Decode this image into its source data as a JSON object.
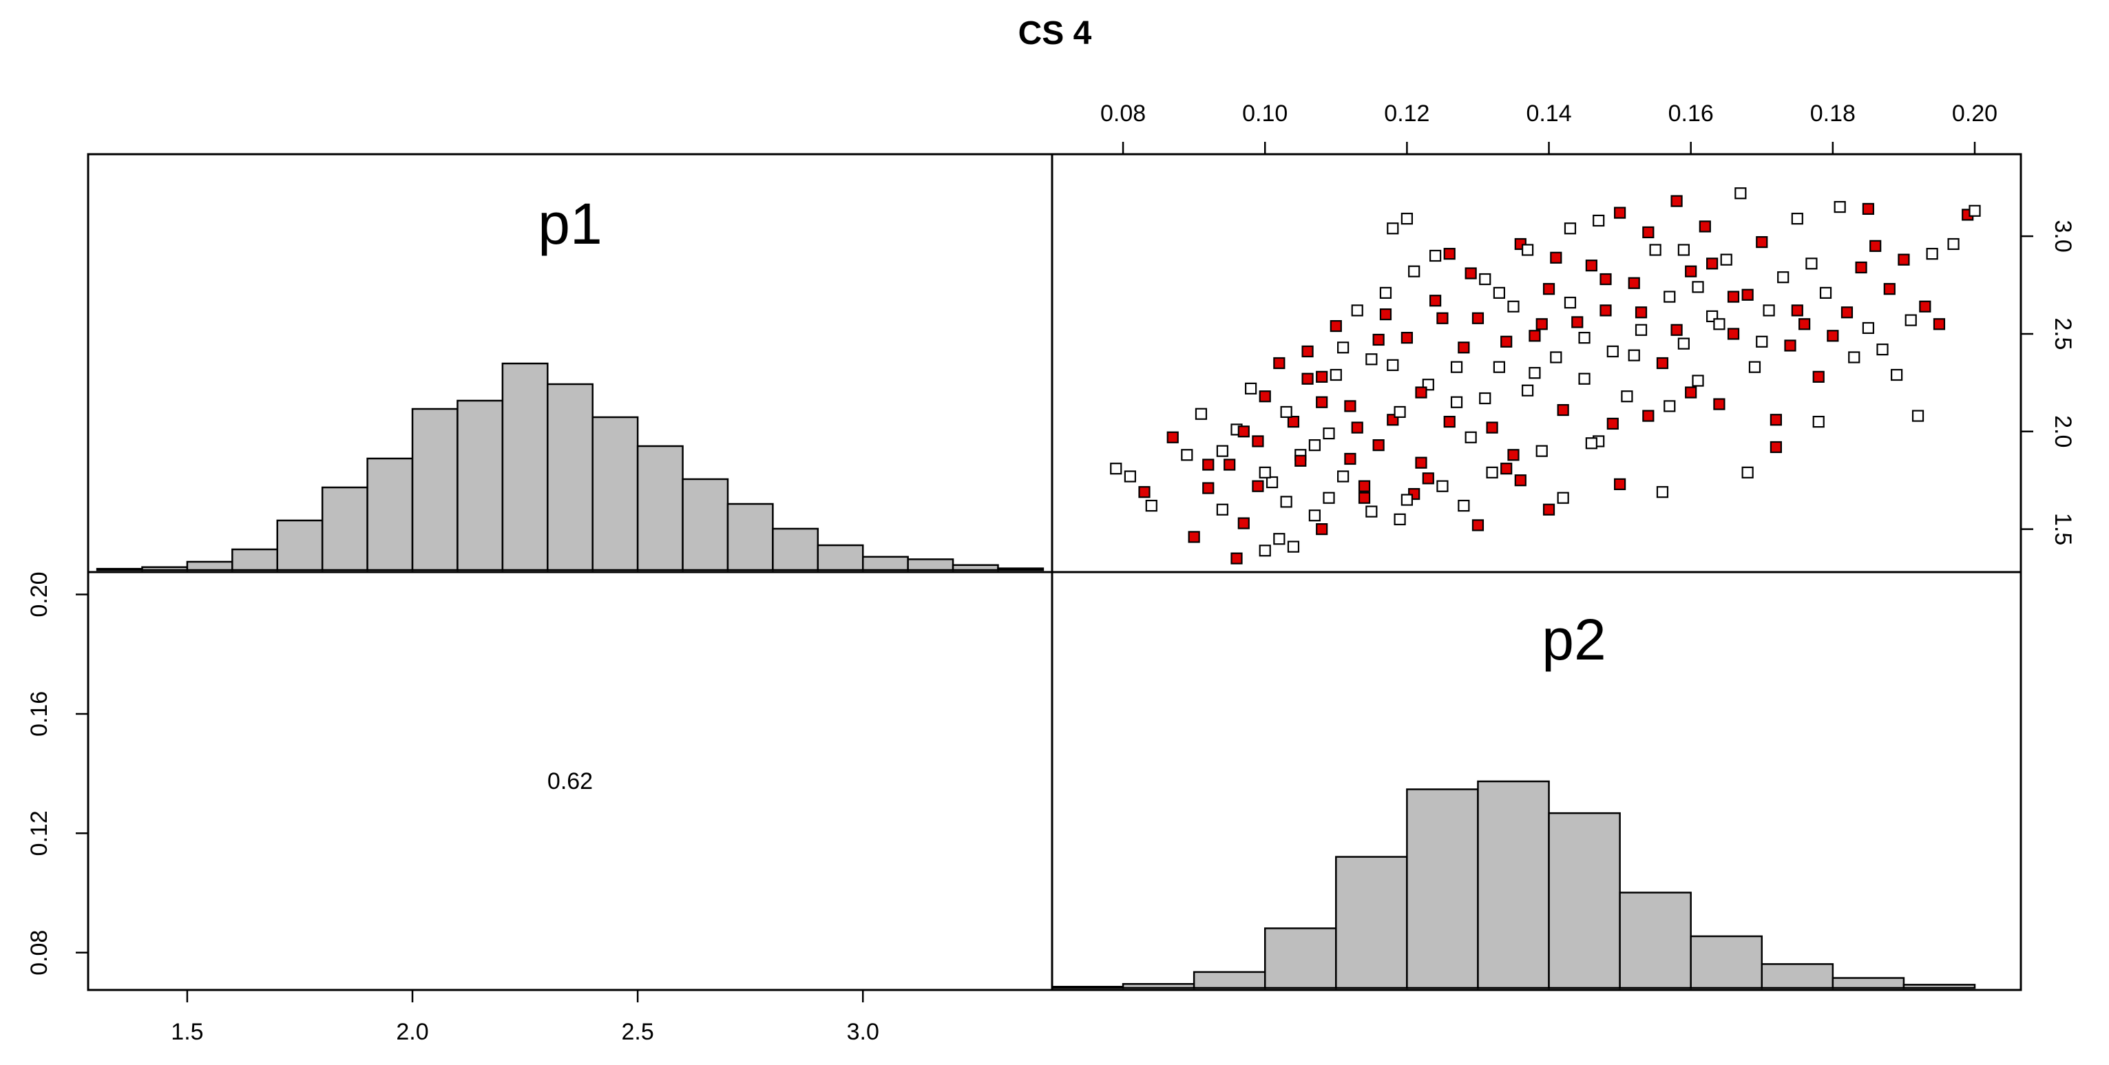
{
  "chart_data": {
    "type": "pairs",
    "title": "CS 4",
    "variables": [
      "p1",
      "p2"
    ],
    "colors": {
      "bar_fill": "#bebebe",
      "point_red": "#dd0000",
      "point_open": "#ffffff",
      "stroke": "#000000"
    },
    "axes": {
      "p1": {
        "range": [
          1.28,
          3.42
        ],
        "ticks": [
          "1.5",
          "2.0",
          "2.5",
          "3.0"
        ],
        "tick_values": [
          1.5,
          2.0,
          2.5,
          3.0
        ],
        "axis_position": "bottom"
      },
      "p2": {
        "range": [
          0.07,
          0.2065
        ],
        "ticks": [
          "0.08",
          "0.10",
          "0.12",
          "0.14",
          "0.16",
          "0.18",
          "0.20"
        ],
        "tick_values": [
          0.08,
          0.1,
          0.12,
          0.14,
          0.16,
          0.18,
          0.2
        ],
        "axis_position": "top"
      },
      "p1_vertical": {
        "range": [
          1.28,
          3.42
        ],
        "ticks": [
          "1.5",
          "2.0",
          "2.5",
          "3.0"
        ],
        "tick_values": [
          1.5,
          2.0,
          2.5,
          3.0
        ],
        "axis_position": "right"
      },
      "p2_vertical": {
        "range": [
          0.0675,
          0.2075
        ],
        "ticks": [
          "0.08",
          "0.12",
          "0.16",
          "0.20"
        ],
        "tick_values": [
          0.08,
          0.12,
          0.16,
          0.2
        ],
        "axis_position": "left"
      }
    },
    "hist_p1": {
      "bins": [
        [
          1.3,
          1.4
        ],
        [
          1.4,
          1.5
        ],
        [
          1.5,
          1.6
        ],
        [
          1.6,
          1.7
        ],
        [
          1.7,
          1.8
        ],
        [
          1.8,
          1.9
        ],
        [
          1.9,
          2.0
        ],
        [
          2.0,
          2.1
        ],
        [
          2.1,
          2.2
        ],
        [
          2.2,
          2.3
        ],
        [
          2.3,
          2.4
        ],
        [
          2.4,
          2.5
        ],
        [
          2.5,
          2.6
        ],
        [
          2.6,
          2.7
        ],
        [
          2.7,
          2.8
        ],
        [
          2.8,
          2.9
        ],
        [
          2.9,
          3.0
        ],
        [
          3.0,
          3.1
        ],
        [
          3.1,
          3.2
        ],
        [
          3.2,
          3.3
        ],
        [
          3.3,
          3.4
        ]
      ],
      "heights": [
        0.003,
        0.007,
        0.02,
        0.05,
        0.12,
        0.2,
        0.27,
        0.39,
        0.41,
        0.5,
        0.45,
        0.37,
        0.3,
        0.22,
        0.16,
        0.1,
        0.06,
        0.032,
        0.026,
        0.012,
        0.004
      ]
    },
    "hist_p2": {
      "bins": [
        [
          0.07,
          0.08
        ],
        [
          0.08,
          0.09
        ],
        [
          0.09,
          0.1
        ],
        [
          0.1,
          0.11
        ],
        [
          0.11,
          0.12
        ],
        [
          0.12,
          0.13
        ],
        [
          0.13,
          0.14
        ],
        [
          0.14,
          0.15
        ],
        [
          0.15,
          0.16
        ],
        [
          0.16,
          0.17
        ],
        [
          0.17,
          0.18
        ],
        [
          0.18,
          0.19
        ],
        [
          0.19,
          0.2
        ]
      ],
      "heights": [
        0.003,
        0.01,
        0.04,
        0.15,
        0.33,
        0.5,
        0.52,
        0.44,
        0.24,
        0.13,
        0.06,
        0.025,
        0.008
      ]
    },
    "correlation": "0.62",
    "scatter": {
      "x_var": "p2",
      "y_var": "p1",
      "points": [
        [
          0.079,
          1.81,
          0
        ],
        [
          0.081,
          1.77,
          0
        ],
        [
          0.083,
          1.69,
          1
        ],
        [
          0.084,
          1.62,
          0
        ],
        [
          0.087,
          1.97,
          1
        ],
        [
          0.089,
          1.88,
          0
        ],
        [
          0.09,
          1.46,
          1
        ],
        [
          0.091,
          2.09,
          0
        ],
        [
          0.092,
          1.71,
          1
        ],
        [
          0.094,
          1.6,
          0
        ],
        [
          0.095,
          1.83,
          1
        ],
        [
          0.096,
          2.01,
          0
        ],
        [
          0.097,
          1.53,
          1
        ],
        [
          0.098,
          2.22,
          0
        ],
        [
          0.099,
          1.95,
          1
        ],
        [
          0.1,
          1.39,
          0
        ],
        [
          0.1,
          2.18,
          1
        ],
        [
          0.101,
          1.74,
          0
        ],
        [
          0.102,
          2.35,
          1
        ],
        [
          0.103,
          1.64,
          0
        ],
        [
          0.104,
          2.05,
          1
        ],
        [
          0.105,
          1.88,
          0
        ],
        [
          0.106,
          2.41,
          1
        ],
        [
          0.107,
          1.57,
          0
        ],
        [
          0.108,
          2.28,
          1
        ],
        [
          0.109,
          1.99,
          0
        ],
        [
          0.11,
          2.54,
          1
        ],
        [
          0.111,
          1.77,
          0
        ],
        [
          0.112,
          2.13,
          1
        ],
        [
          0.113,
          2.62,
          0
        ],
        [
          0.114,
          1.66,
          1
        ],
        [
          0.115,
          2.37,
          0
        ],
        [
          0.116,
          1.93,
          1
        ],
        [
          0.117,
          2.71,
          0
        ],
        [
          0.118,
          2.06,
          1
        ],
        [
          0.119,
          1.55,
          0
        ],
        [
          0.12,
          2.48,
          1
        ],
        [
          0.121,
          2.82,
          0
        ],
        [
          0.122,
          1.84,
          1
        ],
        [
          0.123,
          2.24,
          0
        ],
        [
          0.124,
          2.67,
          1
        ],
        [
          0.125,
          1.72,
          0
        ],
        [
          0.126,
          2.91,
          1
        ],
        [
          0.127,
          2.15,
          0
        ],
        [
          0.128,
          2.43,
          1
        ],
        [
          0.129,
          1.97,
          0
        ],
        [
          0.13,
          2.58,
          1
        ],
        [
          0.131,
          2.78,
          0
        ],
        [
          0.132,
          2.02,
          1
        ],
        [
          0.133,
          2.33,
          0
        ],
        [
          0.134,
          1.81,
          1
        ],
        [
          0.135,
          2.64,
          0
        ],
        [
          0.136,
          2.96,
          1
        ],
        [
          0.137,
          2.21,
          0
        ],
        [
          0.138,
          2.49,
          1
        ],
        [
          0.139,
          1.9,
          0
        ],
        [
          0.14,
          2.73,
          1
        ],
        [
          0.141,
          2.38,
          0
        ],
        [
          0.142,
          2.11,
          1
        ],
        [
          0.143,
          3.04,
          0
        ],
        [
          0.144,
          2.56,
          1
        ],
        [
          0.145,
          2.27,
          0
        ],
        [
          0.146,
          2.85,
          1
        ],
        [
          0.147,
          1.95,
          0
        ],
        [
          0.148,
          2.62,
          1
        ],
        [
          0.149,
          2.41,
          0
        ],
        [
          0.15,
          3.12,
          1
        ],
        [
          0.151,
          2.18,
          0
        ],
        [
          0.152,
          2.76,
          1
        ],
        [
          0.153,
          2.52,
          0
        ],
        [
          0.154,
          2.08,
          1
        ],
        [
          0.155,
          2.93,
          0
        ],
        [
          0.156,
          2.35,
          1
        ],
        [
          0.157,
          2.69,
          0
        ],
        [
          0.158,
          3.18,
          1
        ],
        [
          0.159,
          2.45,
          0
        ],
        [
          0.16,
          2.82,
          1
        ],
        [
          0.161,
          2.26,
          0
        ],
        [
          0.162,
          3.05,
          1
        ],
        [
          0.163,
          2.59,
          0
        ],
        [
          0.164,
          2.14,
          1
        ],
        [
          0.165,
          2.88,
          0
        ],
        [
          0.166,
          2.5,
          1
        ],
        [
          0.167,
          3.22,
          0
        ],
        [
          0.168,
          2.7,
          1
        ],
        [
          0.169,
          2.33,
          0
        ],
        [
          0.17,
          2.97,
          1
        ],
        [
          0.171,
          2.62,
          0
        ],
        [
          0.172,
          2.06,
          1
        ],
        [
          0.173,
          2.79,
          0
        ],
        [
          0.174,
          2.44,
          1
        ],
        [
          0.175,
          3.09,
          0
        ],
        [
          0.176,
          2.55,
          1
        ],
        [
          0.177,
          2.86,
          0
        ],
        [
          0.178,
          2.28,
          1
        ],
        [
          0.179,
          2.71,
          0
        ],
        [
          0.18,
          2.49,
          1
        ],
        [
          0.181,
          3.15,
          0
        ],
        [
          0.182,
          2.61,
          1
        ],
        [
          0.183,
          2.38,
          0
        ],
        [
          0.184,
          2.84,
          1
        ],
        [
          0.185,
          2.53,
          0
        ],
        [
          0.186,
          2.95,
          1
        ],
        [
          0.187,
          2.42,
          0
        ],
        [
          0.188,
          2.73,
          1
        ],
        [
          0.189,
          2.29,
          0
        ],
        [
          0.19,
          2.88,
          1
        ],
        [
          0.191,
          2.57,
          0
        ],
        [
          0.192,
          2.08,
          0
        ],
        [
          0.193,
          2.64,
          1
        ],
        [
          0.194,
          2.91,
          0
        ],
        [
          0.195,
          2.55,
          1
        ],
        [
          0.197,
          2.96,
          0
        ],
        [
          0.199,
          3.11,
          1
        ],
        [
          0.2,
          3.13,
          0
        ],
        [
          0.185,
          3.14,
          1
        ],
        [
          0.178,
          2.05,
          0
        ],
        [
          0.172,
          1.92,
          1
        ],
        [
          0.168,
          1.79,
          0
        ],
        [
          0.12,
          3.09,
          0
        ],
        [
          0.118,
          3.04,
          0
        ],
        [
          0.13,
          1.52,
          1
        ],
        [
          0.14,
          1.6,
          1
        ],
        [
          0.096,
          1.35,
          1
        ],
        [
          0.104,
          1.41,
          0
        ],
        [
          0.156,
          1.69,
          0
        ],
        [
          0.15,
          1.73,
          1
        ],
        [
          0.142,
          1.66,
          0
        ],
        [
          0.136,
          1.75,
          1
        ],
        [
          0.128,
          1.62,
          0
        ],
        [
          0.121,
          1.68,
          1
        ],
        [
          0.115,
          1.59,
          0
        ],
        [
          0.108,
          1.5,
          1
        ],
        [
          0.102,
          1.45,
          0
        ],
        [
          0.125,
          2.58,
          1
        ],
        [
          0.133,
          2.71,
          0
        ],
        [
          0.116,
          2.47,
          1
        ],
        [
          0.11,
          2.29,
          0
        ],
        [
          0.108,
          2.15,
          1
        ],
        [
          0.145,
          2.48,
          0
        ],
        [
          0.153,
          2.61,
          1
        ],
        [
          0.161,
          2.74,
          0
        ],
        [
          0.163,
          2.86,
          1
        ],
        [
          0.17,
          2.46,
          0
        ],
        [
          0.175,
          2.62,
          1
        ],
        [
          0.138,
          2.3,
          0
        ],
        [
          0.134,
          2.46,
          1
        ],
        [
          0.127,
          2.33,
          0
        ],
        [
          0.122,
          2.2,
          1
        ],
        [
          0.119,
          2.1,
          0
        ],
        [
          0.113,
          2.02,
          1
        ],
        [
          0.107,
          1.93,
          0
        ],
        [
          0.105,
          1.85,
          1
        ],
        [
          0.1,
          1.79,
          0
        ],
        [
          0.099,
          1.72,
          1
        ],
        [
          0.148,
          2.78,
          1
        ],
        [
          0.152,
          2.39,
          0
        ],
        [
          0.158,
          2.52,
          1
        ],
        [
          0.143,
          2.66,
          0
        ],
        [
          0.139,
          2.55,
          1
        ],
        [
          0.131,
          2.17,
          0
        ],
        [
          0.126,
          2.05,
          1
        ],
        [
          0.118,
          2.34,
          0
        ],
        [
          0.112,
          1.86,
          1
        ],
        [
          0.164,
          2.55,
          0
        ],
        [
          0.166,
          2.69,
          1
        ],
        [
          0.159,
          2.93,
          0
        ],
        [
          0.154,
          3.02,
          1
        ],
        [
          0.147,
          3.08,
          0
        ],
        [
          0.141,
          2.89,
          1
        ],
        [
          0.137,
          2.93,
          0
        ],
        [
          0.129,
          2.81,
          1
        ],
        [
          0.124,
          2.9,
          0
        ],
        [
          0.117,
          2.6,
          1
        ],
        [
          0.111,
          2.43,
          0
        ],
        [
          0.106,
          2.27,
          1
        ],
        [
          0.103,
          2.1,
          0
        ],
        [
          0.097,
          2.0,
          1
        ],
        [
          0.094,
          1.9,
          0
        ],
        [
          0.092,
          1.83,
          1
        ],
        [
          0.16,
          2.2,
          1
        ],
        [
          0.157,
          2.13,
          0
        ],
        [
          0.149,
          2.04,
          1
        ],
        [
          0.146,
          1.94,
          0
        ],
        [
          0.135,
          1.88,
          1
        ],
        [
          0.132,
          1.79,
          0
        ],
        [
          0.123,
          1.76,
          1
        ],
        [
          0.12,
          1.65,
          0
        ],
        [
          0.114,
          1.72,
          1
        ],
        [
          0.109,
          1.66,
          0
        ]
      ]
    }
  }
}
